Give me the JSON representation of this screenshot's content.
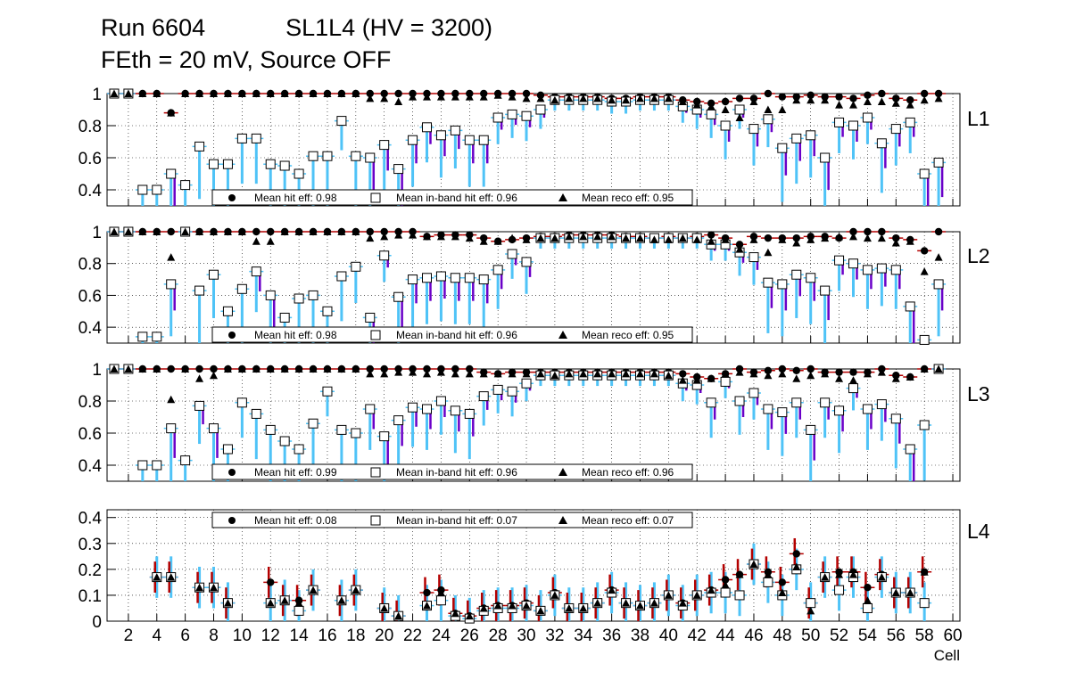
{
  "title": {
    "line1": "Run 6604            SL1L4 (HV = 3200)",
    "line2": "FEth = 20 mV, Source OFF"
  },
  "colors": {
    "hit_err": "#b40000",
    "inband_err": "#4fc3f7",
    "reco_err": "#6a00c8"
  },
  "chart_data": [
    {
      "type": "scatter",
      "panel": "L1",
      "ylim": [
        0.3,
        1.0
      ],
      "yticks": [
        "0.4",
        "0.6",
        "0.8",
        "1"
      ],
      "legend": [
        "Mean hit  eff: 0.98",
        "Mean in-band hit eff: 0.96",
        "Mean reco eff: 0.95"
      ],
      "x": [
        1,
        2,
        3,
        4,
        5,
        6,
        7,
        8,
        9,
        10,
        11,
        12,
        13,
        14,
        15,
        16,
        17,
        18,
        19,
        20,
        21,
        22,
        23,
        24,
        25,
        26,
        27,
        28,
        29,
        30,
        31,
        32,
        33,
        34,
        35,
        36,
        37,
        38,
        39,
        40,
        41,
        42,
        43,
        44,
        45,
        46,
        47,
        48,
        49,
        50,
        51,
        52,
        53,
        54,
        55,
        56,
        57,
        58,
        59
      ],
      "series": [
        {
          "name": "Mean hit eff",
          "values": [
            1,
            1,
            1,
            1,
            0.88,
            1,
            1,
            1,
            1,
            1,
            1,
            1,
            1,
            1,
            1,
            1,
            1,
            1,
            1,
            1,
            1,
            1,
            1,
            1,
            1,
            1,
            1,
            1,
            1,
            1,
            0.99,
            0.98,
            0.98,
            0.98,
            0.98,
            0.97,
            0.97,
            0.98,
            0.98,
            0.98,
            0.96,
            0.95,
            0.94,
            0.95,
            0.97,
            0.97,
            1,
            0.98,
            0.98,
            0.99,
            0.98,
            0.98,
            0.97,
            0.99,
            1,
            0.97,
            0.96,
            1,
            1
          ]
        },
        {
          "name": "Mean in-band hit eff",
          "values": [
            1,
            1,
            0.4,
            0.4,
            0.5,
            0.43,
            0.67,
            0.56,
            0.56,
            0.72,
            0.72,
            0.56,
            0.55,
            0.5,
            0.61,
            0.61,
            0.83,
            0.61,
            0.6,
            0.68,
            0.53,
            0.71,
            0.79,
            0.74,
            0.77,
            0.71,
            0.71,
            0.85,
            0.87,
            0.86,
            0.9,
            0.96,
            0.96,
            0.96,
            0.96,
            0.95,
            0.95,
            0.96,
            0.96,
            0.96,
            0.92,
            0.9,
            0.87,
            0.8,
            0.9,
            0.78,
            0.84,
            0.66,
            0.72,
            0.74,
            0.6,
            0.82,
            0.8,
            0.85,
            0.69,
            0.78,
            0.82,
            0.5,
            0.57
          ]
        },
        {
          "name": "Mean reco eff",
          "values": [
            1,
            1,
            1,
            1,
            0.88,
            1,
            1,
            1,
            1,
            1,
            1,
            1,
            1,
            1,
            1,
            1,
            1,
            1,
            0.97,
            0.97,
            0.95,
            0.98,
            0.98,
            0.98,
            0.98,
            0.98,
            0.98,
            0.99,
            0.98,
            0.97,
            0.97,
            0.96,
            0.97,
            0.97,
            0.97,
            0.96,
            0.96,
            0.97,
            0.97,
            0.97,
            0.95,
            0.93,
            0.92,
            0.9,
            0.85,
            0.95,
            0.9,
            0.9,
            0.96,
            0.96,
            0.96,
            0.93,
            0.93,
            0.95,
            0.95,
            0.94,
            0.93,
            0.96,
            0.97
          ]
        }
      ]
    },
    {
      "type": "scatter",
      "panel": "L2",
      "ylim": [
        0.3,
        1.0
      ],
      "yticks": [
        "0.4",
        "0.6",
        "0.8",
        "1"
      ],
      "legend": [
        "Mean hit  eff: 0.98",
        "Mean in-band hit eff: 0.96",
        "Mean reco eff: 0.95"
      ],
      "x": [
        1,
        2,
        3,
        4,
        5,
        6,
        7,
        8,
        9,
        10,
        11,
        12,
        13,
        14,
        15,
        16,
        17,
        18,
        19,
        20,
        21,
        22,
        23,
        24,
        25,
        26,
        27,
        28,
        29,
        30,
        31,
        32,
        33,
        34,
        35,
        36,
        37,
        38,
        39,
        40,
        41,
        42,
        43,
        44,
        45,
        46,
        47,
        48,
        49,
        50,
        51,
        52,
        53,
        54,
        55,
        56,
        57,
        58,
        59
      ],
      "series": [
        {
          "name": "Mean hit eff",
          "values": [
            1,
            1,
            1,
            1,
            1,
            1,
            1,
            1,
            1,
            1,
            1,
            1,
            1,
            1,
            1,
            1,
            1,
            1,
            1,
            1,
            1,
            1,
            0.97,
            0.98,
            0.98,
            0.98,
            0.96,
            0.94,
            0.95,
            0.96,
            0.97,
            0.97,
            0.98,
            0.98,
            0.98,
            0.98,
            0.97,
            0.97,
            0.96,
            0.97,
            0.96,
            0.97,
            0.98,
            0.96,
            0.92,
            0.97,
            0.96,
            0.96,
            0.96,
            0.97,
            0.97,
            0.96,
            1,
            1,
            1,
            0.96,
            0.95,
            0.88,
            1
          ]
        },
        {
          "name": "Mean in-band hit eff",
          "values": [
            1,
            1,
            0.34,
            0.34,
            0.67,
            1,
            0.63,
            0.73,
            0.5,
            0.64,
            0.75,
            0.6,
            0.46,
            0.58,
            0.6,
            0.5,
            0.72,
            0.78,
            0.46,
            0.85,
            0.59,
            0.7,
            0.71,
            0.72,
            0.71,
            0.71,
            0.7,
            0.76,
            0.86,
            0.81,
            0.96,
            0.96,
            0.96,
            0.96,
            0.96,
            0.96,
            0.96,
            0.96,
            0.96,
            0.96,
            0.96,
            0.96,
            0.92,
            0.92,
            0.87,
            0.84,
            0.68,
            0.67,
            0.73,
            0.71,
            0.63,
            0.82,
            0.8,
            0.76,
            0.77,
            0.76,
            0.53,
            0.32,
            0.67
          ]
        },
        {
          "name": "Mean reco eff",
          "values": [
            1,
            1,
            1,
            1,
            0.84,
            1,
            1,
            1,
            1,
            1,
            0.94,
            0.94,
            1,
            1,
            1,
            1,
            1,
            1,
            0.96,
            0.97,
            0.98,
            0.98,
            0.97,
            0.97,
            0.97,
            0.96,
            0.94,
            0.94,
            0.96,
            0.95,
            0.96,
            0.96,
            0.97,
            0.97,
            0.97,
            0.97,
            0.96,
            0.96,
            0.95,
            0.95,
            0.96,
            0.95,
            0.94,
            0.95,
            0.89,
            0.95,
            0.87,
            0.95,
            0.93,
            0.95,
            0.96,
            0.97,
            0.97,
            0.96,
            0.96,
            0.93,
            0.94,
            0.75,
            0.84
          ]
        }
      ]
    },
    {
      "type": "scatter",
      "panel": "L3",
      "ylim": [
        0.3,
        1.0
      ],
      "yticks": [
        "0.4",
        "0.6",
        "0.8",
        "1"
      ],
      "legend": [
        "Mean hit  eff: 0.99",
        "Mean in-band hit eff: 0.96",
        "Mean reco eff: 0.96"
      ],
      "x": [
        1,
        2,
        3,
        4,
        5,
        6,
        7,
        8,
        9,
        10,
        11,
        12,
        13,
        14,
        15,
        16,
        17,
        18,
        19,
        20,
        21,
        22,
        23,
        24,
        25,
        26,
        27,
        28,
        29,
        30,
        31,
        32,
        33,
        34,
        35,
        36,
        37,
        38,
        39,
        40,
        41,
        42,
        43,
        44,
        45,
        46,
        47,
        48,
        49,
        50,
        51,
        52,
        53,
        54,
        55,
        56,
        57,
        58,
        59
      ],
      "series": [
        {
          "name": "Mean hit eff",
          "values": [
            1,
            1,
            1,
            1,
            1,
            1,
            1,
            1,
            1,
            1,
            1,
            1,
            1,
            1,
            1,
            1,
            1,
            1,
            1,
            1,
            1,
            1,
            1,
            1,
            1,
            1,
            0.98,
            0.97,
            0.98,
            0.98,
            0.98,
            0.98,
            0.98,
            0.98,
            0.98,
            0.98,
            0.98,
            0.98,
            0.98,
            0.98,
            0.97,
            0.95,
            0.94,
            0.97,
            1,
            0.98,
            0.99,
            1,
            0.99,
            1,
            0.98,
            0.98,
            0.98,
            0.98,
            1,
            0.96,
            0.95,
            1,
            1
          ]
        },
        {
          "name": "Mean in-band hit eff",
          "values": [
            1,
            1,
            0.4,
            0.4,
            0.63,
            0.43,
            0.77,
            0.63,
            0.5,
            0.79,
            0.72,
            0.62,
            0.55,
            0.5,
            0.66,
            0.86,
            0.62,
            0.6,
            0.75,
            0.58,
            0.68,
            0.76,
            0.75,
            0.8,
            0.74,
            0.72,
            0.83,
            0.87,
            0.86,
            0.91,
            0.96,
            0.96,
            0.96,
            0.96,
            0.96,
            0.96,
            0.96,
            0.96,
            0.96,
            0.96,
            0.91,
            0.9,
            0.79,
            0.92,
            0.8,
            0.85,
            0.75,
            0.73,
            0.79,
            0.62,
            0.79,
            0.74,
            0.88,
            0.75,
            0.78,
            0.69,
            0.5,
            0.65,
            1
          ]
        },
        {
          "name": "Mean reco eff",
          "values": [
            1,
            1,
            1,
            1,
            0.81,
            1,
            0.94,
            0.96,
            1,
            1,
            1,
            1,
            1,
            1,
            1,
            1,
            1,
            1,
            0.97,
            0.97,
            0.98,
            0.98,
            0.97,
            0.98,
            0.97,
            0.97,
            0.97,
            0.97,
            0.97,
            0.97,
            0.97,
            0.96,
            0.97,
            0.97,
            0.97,
            0.97,
            0.97,
            0.97,
            0.97,
            0.96,
            0.93,
            0.93,
            0.94,
            0.97,
            0.98,
            0.97,
            0.96,
            0.97,
            0.94,
            0.96,
            0.97,
            0.94,
            0.93,
            0.97,
            0.98,
            0.94,
            0.95,
            1,
            1
          ]
        }
      ]
    },
    {
      "type": "scatter",
      "panel": "L4",
      "ylim": [
        0.0,
        0.43
      ],
      "yticks": [
        "0",
        "0.1",
        "0.2",
        "0.3",
        "0.4"
      ],
      "legend": [
        "Mean hit  eff: 0.08",
        "Mean in-band hit eff: 0.07",
        "Mean reco eff: 0.07"
      ],
      "xlabel": "Cell",
      "xticks": [
        "2",
        "4",
        "6",
        "8",
        "10",
        "12",
        "14",
        "16",
        "18",
        "20",
        "22",
        "24",
        "26",
        "28",
        "30",
        "32",
        "34",
        "36",
        "38",
        "40",
        "42",
        "44",
        "46",
        "48",
        "50",
        "52",
        "54",
        "56",
        "58",
        "60"
      ],
      "x": [
        4,
        5,
        7,
        8,
        9,
        12,
        13,
        14,
        15,
        17,
        18,
        20,
        21,
        23,
        24,
        25,
        26,
        27,
        28,
        29,
        30,
        31,
        32,
        33,
        34,
        35,
        36,
        37,
        38,
        39,
        40,
        41,
        42,
        43,
        44,
        45,
        46,
        47,
        48,
        49,
        50,
        51,
        52,
        53,
        54,
        55,
        56,
        57,
        58
      ],
      "series": [
        {
          "name": "Mean hit eff",
          "values": [
            0.17,
            0.17,
            0.13,
            0.13,
            0.07,
            0.15,
            0.08,
            0.08,
            0.12,
            0.08,
            0.12,
            0.05,
            0.02,
            0.11,
            0.12,
            0.03,
            0.02,
            0.05,
            0.06,
            0.06,
            0.07,
            0.04,
            0.11,
            0.05,
            0.05,
            0.07,
            0.12,
            0.07,
            0.06,
            0.07,
            0.1,
            0.07,
            0.1,
            0.12,
            0.16,
            0.18,
            0.22,
            0.19,
            0.15,
            0.26,
            0.07,
            0.17,
            0.19,
            0.19,
            0.13,
            0.18,
            0.11,
            0.11,
            0.19
          ]
        },
        {
          "name": "Mean in-band hit eff",
          "values": [
            0.17,
            0.17,
            0.13,
            0.13,
            0.07,
            0.07,
            0.08,
            0.04,
            0.12,
            0.08,
            0.12,
            0.05,
            0.02,
            0.06,
            0.08,
            0.02,
            0.01,
            0.04,
            0.05,
            0.05,
            0.06,
            0.04,
            0.1,
            0.05,
            0.05,
            0.07,
            0.11,
            0.07,
            0.06,
            0.07,
            0.1,
            0.06,
            0.1,
            0.11,
            0.11,
            0.1,
            0.22,
            0.15,
            0.1,
            0.2,
            0.07,
            0.17,
            0.12,
            0.17,
            0.05,
            0.17,
            0.11,
            0.11,
            0.07
          ]
        },
        {
          "name": "Mean reco eff",
          "values": [
            0.17,
            0.17,
            0.13,
            0.13,
            0.07,
            0.07,
            0.08,
            0.07,
            0.12,
            0.08,
            0.12,
            0.05,
            0.02,
            0.06,
            0.11,
            0.03,
            0.02,
            0.05,
            0.06,
            0.06,
            0.06,
            0.04,
            0.1,
            0.05,
            0.05,
            0.07,
            0.12,
            0.07,
            0.06,
            0.07,
            0.1,
            0.07,
            0.1,
            0.12,
            0.14,
            0.18,
            0.22,
            0.18,
            0.11,
            0.21,
            0.04,
            0.17,
            0.18,
            0.18,
            0.08,
            0.17,
            0.11,
            0.11,
            0.19
          ]
        }
      ]
    }
  ]
}
